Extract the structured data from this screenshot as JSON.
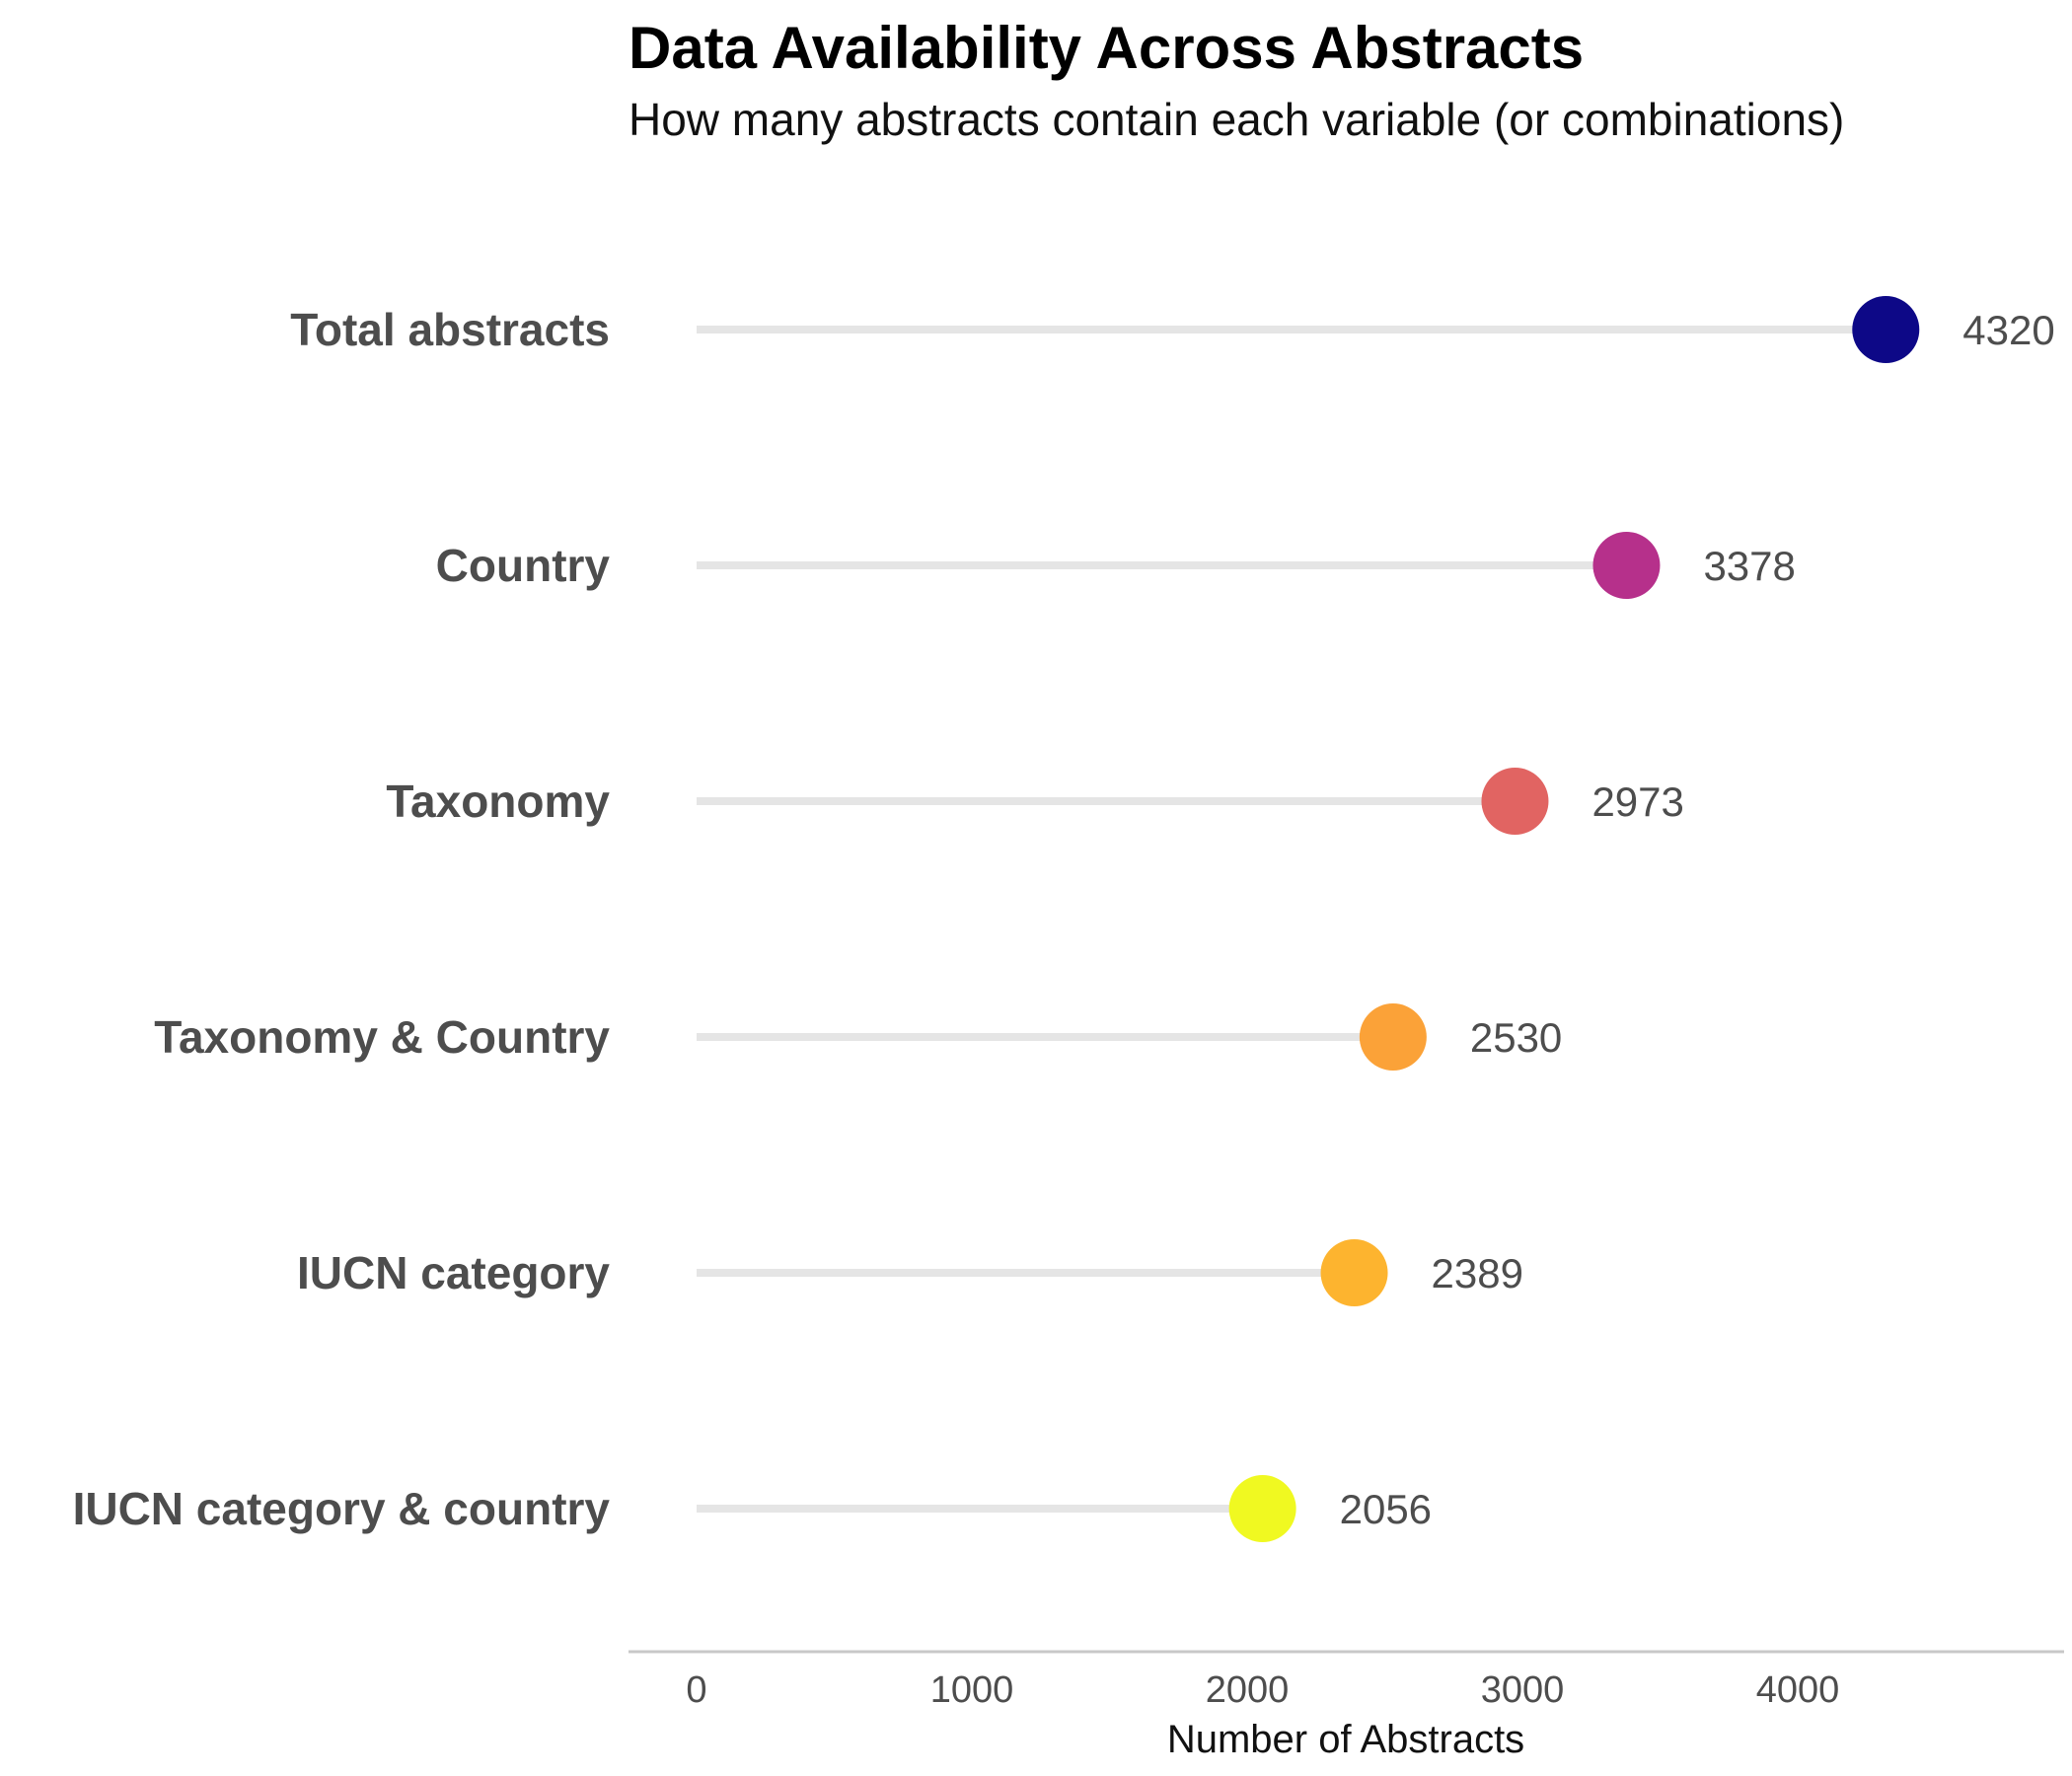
{
  "chart_data": {
    "type": "dot",
    "title": "Data Availability Across Abstracts",
    "subtitle": "How many abstracts contain each variable (or combinations)",
    "xlabel": "Number of Abstracts",
    "ylabel": "",
    "xlim": [
      0,
      4800
    ],
    "xticks": [
      0,
      1000,
      2000,
      3000,
      4000
    ],
    "grid": false,
    "categories": [
      "Total abstracts",
      "Country",
      "Taxonomy",
      "Taxonomy & Country",
      "IUCN category",
      "IUCN category & country"
    ],
    "values": [
      4320,
      3378,
      2973,
      2530,
      2389,
      2056
    ],
    "colors": [
      "#0d0887",
      "#b6308b",
      "#e16462",
      "#fba238",
      "#fdb42f",
      "#f0f921"
    ],
    "segment_color": "#e5e5e5",
    "axis_line_color": "#c8c8c8"
  }
}
